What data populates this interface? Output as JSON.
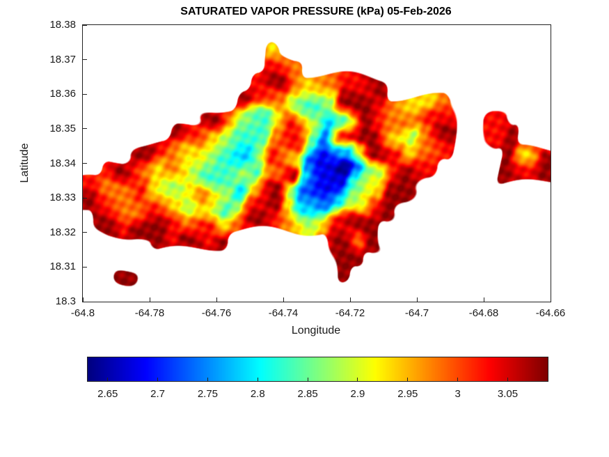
{
  "colors": {
    "background": "#ffffff",
    "text": "#1a1a1a"
  },
  "chart_data": {
    "type": "heatmap",
    "title": "SATURATED VAPOR PRESSURE (kPa) 05-Feb-2026",
    "xlabel": "Longitude",
    "ylabel": "Latitude",
    "xlim": [
      -64.8,
      -64.66
    ],
    "ylim": [
      18.3,
      18.38
    ],
    "x_ticks": [
      -64.8,
      -64.78,
      -64.76,
      -64.74,
      -64.72,
      -64.7,
      -64.68,
      -64.66
    ],
    "x_tick_labels": [
      "-64.8",
      "-64.78",
      "-64.76",
      "-64.74",
      "-64.72",
      "-64.7",
      "-64.68",
      "-64.66"
    ],
    "y_ticks": [
      18.3,
      18.31,
      18.32,
      18.33,
      18.34,
      18.35,
      18.36,
      18.37,
      18.38
    ],
    "y_tick_labels": [
      "18.3",
      "18.31",
      "18.32",
      "18.33",
      "18.34",
      "18.35",
      "18.36",
      "18.37",
      "18.38"
    ],
    "colormap": "jet",
    "clim": [
      2.63,
      3.09
    ],
    "units": "kPa",
    "colorbar": {
      "orientation": "horizontal",
      "ticks": [
        2.65,
        2.7,
        2.75,
        2.8,
        2.85,
        2.9,
        2.95,
        3,
        3.05
      ],
      "tick_labels": [
        "2.65",
        "2.7",
        "2.75",
        "2.8",
        "2.85",
        "2.9",
        "2.95",
        "3",
        "3.05"
      ]
    },
    "grid": {
      "rows": 16,
      "cols": 28,
      "lon_start": -64.8,
      "lat_start": 18.38,
      "cell_deg": 0.005,
      "value_encoding": {
        "ocean": ".",
        "levels": "0123456789",
        "level_min": 2.63,
        "level_step": 0.05
      },
      "rows_encoded": [
        "............................",
        "...........6................",
        "...........87...............",
        "..........89767889..........",
        ".........9875459987667......",
        ".......975468534987788..8...",
        ".....98654478428996579..89..",
        "...9876543586213698678...969",
        ".89767544547931025898....989",
        "87786567536952114699........",
        "9877865645896323589.........",
        ".98998786798756899..........",
        "....98989......979..........",
        "...............99...........",
        "..9............9............",
        "............................"
      ]
    }
  }
}
